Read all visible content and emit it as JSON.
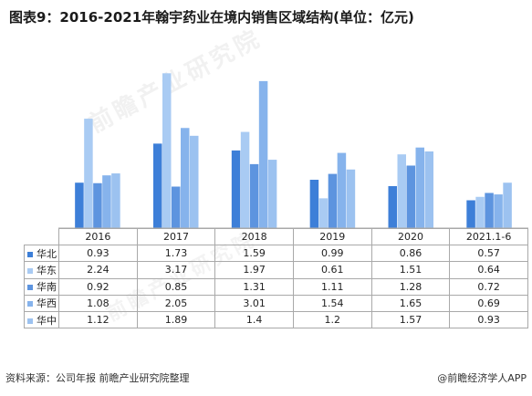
{
  "title": "图表9：2016-2021年翰宇药业在境内销售区域结构(单位：亿元)",
  "footer": {
    "source": "资料来源：公司年报  前瞻产业研究院整理",
    "brand": "@前瞻经济学人APP"
  },
  "watermark": "前瞻产业研究院",
  "chart_data": {
    "type": "bar",
    "title": "图表9：2016-2021年翰宇药业在境内销售区域结构(单位：亿元)",
    "categories": [
      "2016",
      "2017",
      "2018",
      "2019",
      "2020",
      "2021.1-6"
    ],
    "series": [
      {
        "name": "华北",
        "color": "#3d7fd8",
        "values": [
          0.93,
          1.73,
          1.59,
          0.99,
          0.86,
          0.57
        ]
      },
      {
        "name": "华东",
        "color": "#a9cbf3",
        "values": [
          2.24,
          3.17,
          1.97,
          0.61,
          1.51,
          0.64
        ]
      },
      {
        "name": "华南",
        "color": "#5d94df",
        "values": [
          0.92,
          0.85,
          1.31,
          1.11,
          1.28,
          0.72
        ]
      },
      {
        "name": "华西",
        "color": "#86b3ec",
        "values": [
          1.08,
          2.05,
          3.01,
          1.54,
          1.65,
          0.69
        ]
      },
      {
        "name": "华中",
        "color": "#9cc2f0",
        "values": [
          1.12,
          1.89,
          1.4,
          1.2,
          1.57,
          0.93
        ]
      }
    ],
    "data_table": true,
    "legend": "table-left",
    "grid": false,
    "ylim": [
      0,
      3.4
    ]
  }
}
